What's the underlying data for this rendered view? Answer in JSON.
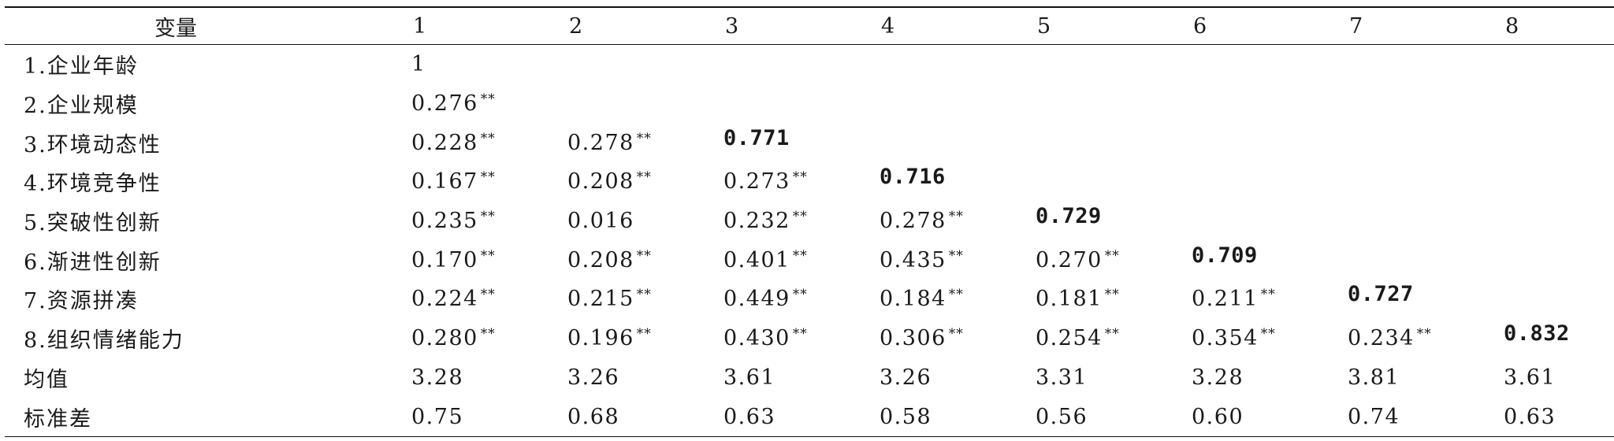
{
  "table": {
    "header": [
      "变量",
      "1",
      "2",
      "3",
      "4",
      "5",
      "6",
      "7",
      "8"
    ],
    "rows": [
      {
        "label": "1.企业年龄",
        "cells": [
          {
            "v": "1",
            "sig": ""
          }
        ]
      },
      {
        "label": "2.企业规模",
        "cells": [
          {
            "v": "0.276",
            "sig": "**"
          }
        ]
      },
      {
        "label": "3.环境动态性",
        "cells": [
          {
            "v": "0.228",
            "sig": "**"
          },
          {
            "v": "0.278",
            "sig": "**"
          },
          {
            "v": "0.771",
            "sig": "",
            "diag": true
          }
        ]
      },
      {
        "label": "4.环境竞争性",
        "cells": [
          {
            "v": "0.167",
            "sig": "**"
          },
          {
            "v": "0.208",
            "sig": "**"
          },
          {
            "v": "0.273",
            "sig": "**"
          },
          {
            "v": "0.716",
            "sig": "",
            "diag": true
          }
        ]
      },
      {
        "label": "5.突破性创新",
        "cells": [
          {
            "v": "0.235",
            "sig": "**"
          },
          {
            "v": "0.016",
            "sig": ""
          },
          {
            "v": "0.232",
            "sig": "**"
          },
          {
            "v": "0.278",
            "sig": "**"
          },
          {
            "v": "0.729",
            "sig": "",
            "diag": true
          }
        ]
      },
      {
        "label": "6.渐进性创新",
        "cells": [
          {
            "v": "0.170",
            "sig": "**"
          },
          {
            "v": "0.208",
            "sig": "**"
          },
          {
            "v": "0.401",
            "sig": "**"
          },
          {
            "v": "0.435",
            "sig": "**"
          },
          {
            "v": "0.270",
            "sig": "**"
          },
          {
            "v": "0.709",
            "sig": "",
            "diag": true
          }
        ]
      },
      {
        "label": "7.资源拼凑",
        "cells": [
          {
            "v": "0.224",
            "sig": "**"
          },
          {
            "v": "0.215",
            "sig": "**"
          },
          {
            "v": "0.449",
            "sig": "**"
          },
          {
            "v": "0.184",
            "sig": "**"
          },
          {
            "v": "0.181",
            "sig": "**"
          },
          {
            "v": "0.211",
            "sig": "**"
          },
          {
            "v": "0.727",
            "sig": "",
            "diag": true
          }
        ]
      },
      {
        "label": "8.组织情绪能力",
        "cells": [
          {
            "v": "0.280",
            "sig": "**"
          },
          {
            "v": "0.196",
            "sig": "**"
          },
          {
            "v": "0.430",
            "sig": "**"
          },
          {
            "v": "0.306",
            "sig": "**"
          },
          {
            "v": "0.254",
            "sig": "**"
          },
          {
            "v": "0.354",
            "sig": "**"
          },
          {
            "v": "0.234",
            "sig": "**"
          },
          {
            "v": "0.832",
            "sig": "",
            "diag": true
          }
        ]
      },
      {
        "label": "均值",
        "cells": [
          {
            "v": "3.28",
            "sig": ""
          },
          {
            "v": "3.26",
            "sig": ""
          },
          {
            "v": "3.61",
            "sig": ""
          },
          {
            "v": "3.26",
            "sig": ""
          },
          {
            "v": "3.31",
            "sig": ""
          },
          {
            "v": "3.28",
            "sig": ""
          },
          {
            "v": "3.81",
            "sig": ""
          },
          {
            "v": "3.61",
            "sig": ""
          }
        ]
      },
      {
        "label": "标准差",
        "cells": [
          {
            "v": "0.75",
            "sig": ""
          },
          {
            "v": "0.68",
            "sig": ""
          },
          {
            "v": "0.63",
            "sig": ""
          },
          {
            "v": "0.58",
            "sig": ""
          },
          {
            "v": "0.56",
            "sig": ""
          },
          {
            "v": "0.60",
            "sig": ""
          },
          {
            "v": "0.74",
            "sig": ""
          },
          {
            "v": "0.63",
            "sig": ""
          }
        ]
      }
    ]
  }
}
